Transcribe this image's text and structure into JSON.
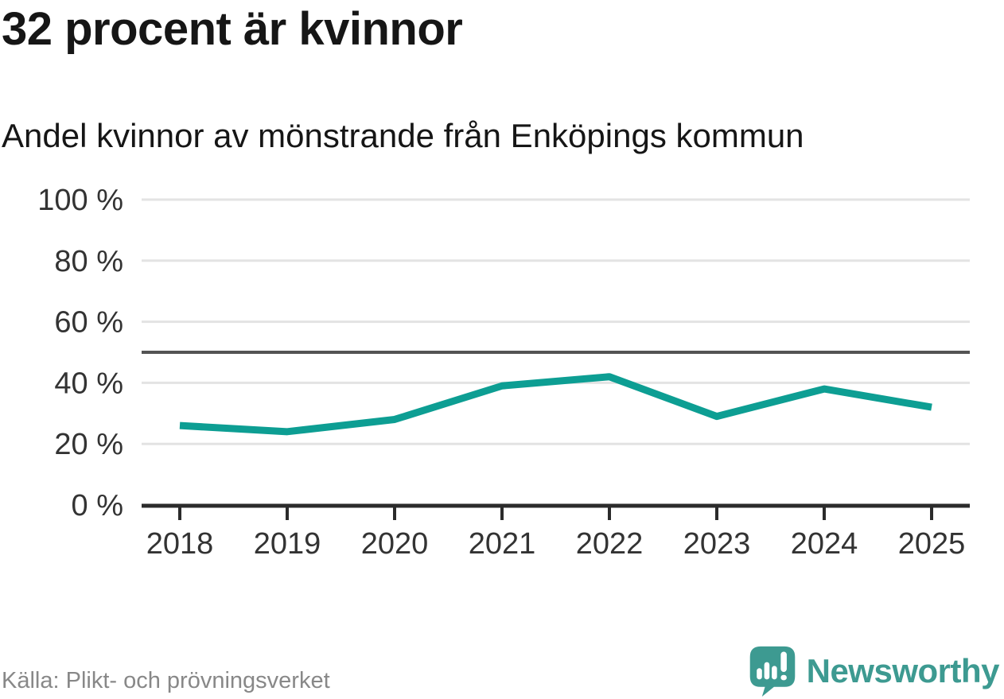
{
  "header": {
    "title": "32 procent är kvinnor",
    "subtitle": "Andel kvinnor av mönstrande från Enköpings kommun"
  },
  "footer": {
    "source": "Källa: Plikt- och prövningsverket",
    "brand": "Newsworthy",
    "logo_icon": "speech-bubble-bar-chart-exclamation-icon"
  },
  "colors": {
    "line": "#0d9e93",
    "grid": "#e3e3e3",
    "ref": "#545454",
    "axis": "#2b2b2b",
    "label": "#333333",
    "text_dark": "#161616",
    "text_gray": "#888888",
    "brand_teal": "#3d9a91"
  },
  "chart_data": {
    "type": "line",
    "title": "32 procent är kvinnor",
    "subtitle": "Andel kvinnor av mönstrande från Enköpings kommun",
    "x": [
      2018,
      2019,
      2020,
      2021,
      2022,
      2023,
      2024,
      2025
    ],
    "series": [
      {
        "name": "Andel kvinnor av mönstrande",
        "values": [
          26,
          24,
          28,
          39,
          42,
          29,
          38,
          32
        ]
      }
    ],
    "ylim": [
      0,
      100
    ],
    "yticks": [
      0,
      20,
      40,
      60,
      80,
      100
    ],
    "ytick_labels": [
      "0 %",
      "20 %",
      "40 %",
      "60 %",
      "80 %",
      "100 %"
    ],
    "reference_line": 50,
    "grid": true,
    "legend": "none"
  }
}
